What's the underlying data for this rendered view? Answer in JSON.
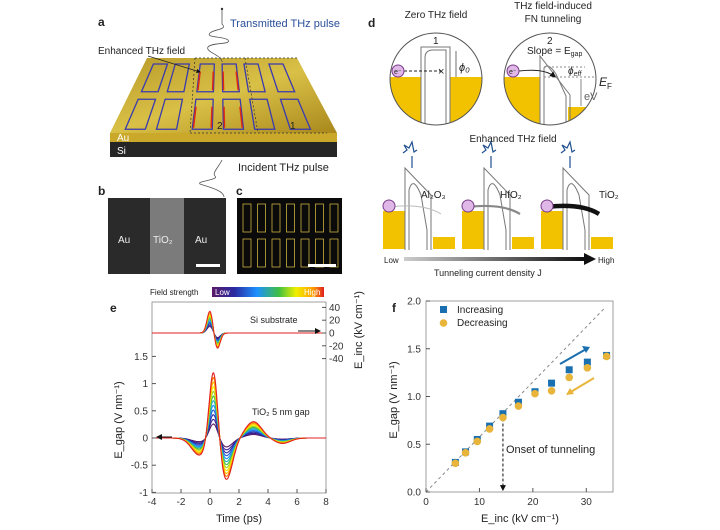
{
  "panel_labels": {
    "a": "a",
    "b": "b",
    "c": "c",
    "d": "d",
    "e": "e",
    "f": "f"
  },
  "panel_a": {
    "transmitted": "Transmitted THz pulse",
    "enhanced": "Enhanced THz field",
    "incident": "Incident THz pulse",
    "au": "Au",
    "si": "Si",
    "region1": "1",
    "region2": "2"
  },
  "panel_b": {
    "left": "Au",
    "middle": "TiO₂",
    "right": "Au"
  },
  "panel_d": {
    "zero_title": "Zero THz field",
    "fn_title_1": "THz field-induced",
    "fn_title_2": "FN tunneling",
    "circle1": "1",
    "circle2": "2",
    "phi0": "ϕ₀",
    "slope": "Slope = E",
    "slope_sub": "gap",
    "phi_eff": "ϕ",
    "phi_eff_sub": "eff",
    "ef": "E",
    "ef_sub": "F",
    "ev": "eV",
    "electron": "e⁻",
    "enhanced": "Enhanced THz field",
    "materials": [
      "Al₂O₃",
      "HfO₂",
      "TiO₂"
    ],
    "low": "Low",
    "high": "High",
    "axis": "Tunneling current density J",
    "colors": {
      "gold": "#f2c200",
      "wave": "#1f4f8f"
    }
  },
  "chart_data": [
    {
      "panel": "e",
      "type": "line",
      "colorbar": {
        "label": "Field strength",
        "low": "Low",
        "high": "High"
      },
      "xlabel": "Time (ps)",
      "ylabel_left": "E_gap (V nm⁻¹)",
      "ylabel_right": "E_inc (kV cm⁻¹)",
      "xlim": [
        -4,
        8
      ],
      "xticks": [
        "-4",
        "-2",
        "0",
        "2",
        "4",
        "6",
        "8"
      ],
      "ylim_left": [
        -1,
        1.5
      ],
      "yticks_left": [
        "-1",
        "-0.5",
        "0",
        "0.5",
        "1",
        "1.5"
      ],
      "yticks_right": [
        "40",
        "20",
        "0",
        "-20",
        "-40"
      ],
      "annotations": [
        "Si substrate",
        "TiO₂ 5 nm gap"
      ],
      "gap_extremes_highest_field": [
        {
          "t": -0.7,
          "E": -0.32
        },
        {
          "t": 0.25,
          "E": 1.4
        },
        {
          "t": 1.1,
          "E": -0.78
        },
        {
          "t": 3.0,
          "E": 0.3
        },
        {
          "t": 5.0,
          "E": -0.1
        }
      ],
      "gap_peak_lowest_field": 0.3,
      "inc_extremes_highest_field": [
        {
          "t": 0.0,
          "E": 35
        },
        {
          "t": 0.5,
          "E": -25
        }
      ],
      "n_traces": 12
    },
    {
      "panel": "f",
      "type": "scatter",
      "xlabel": "E_inc (kV cm⁻¹)",
      "ylabel": "E_gap (V nm⁻¹)",
      "xlim": [
        0,
        35
      ],
      "ylim": [
        0,
        2.0
      ],
      "xticks": [
        "0",
        "10",
        "20",
        "30"
      ],
      "yticks": [
        "0.0",
        "0.5",
        "1.0",
        "1.5",
        "2.0"
      ],
      "legend": "top-left",
      "annotation": "Onset of tunneling",
      "onset_x": 14.4,
      "series": [
        {
          "name": "Increasing",
          "marker": "square",
          "color": "#1a6fb0",
          "x": [
            5.5,
            7.4,
            9.6,
            11.9,
            14.4,
            17.3,
            20.4,
            23.5,
            26.8,
            30.2,
            33.8
          ],
          "y": [
            0.31,
            0.42,
            0.55,
            0.69,
            0.82,
            0.94,
            1.05,
            1.14,
            1.28,
            1.36,
            1.43
          ]
        },
        {
          "name": "Decreasing",
          "marker": "circle",
          "color": "#e8b43a",
          "x": [
            5.5,
            7.4,
            9.6,
            11.9,
            14.4,
            17.3,
            20.4,
            23.5,
            26.8,
            30.2,
            33.8
          ],
          "y": [
            0.3,
            0.41,
            0.53,
            0.66,
            0.78,
            0.9,
            1.03,
            1.06,
            1.2,
            1.3,
            1.42
          ]
        }
      ]
    }
  ]
}
